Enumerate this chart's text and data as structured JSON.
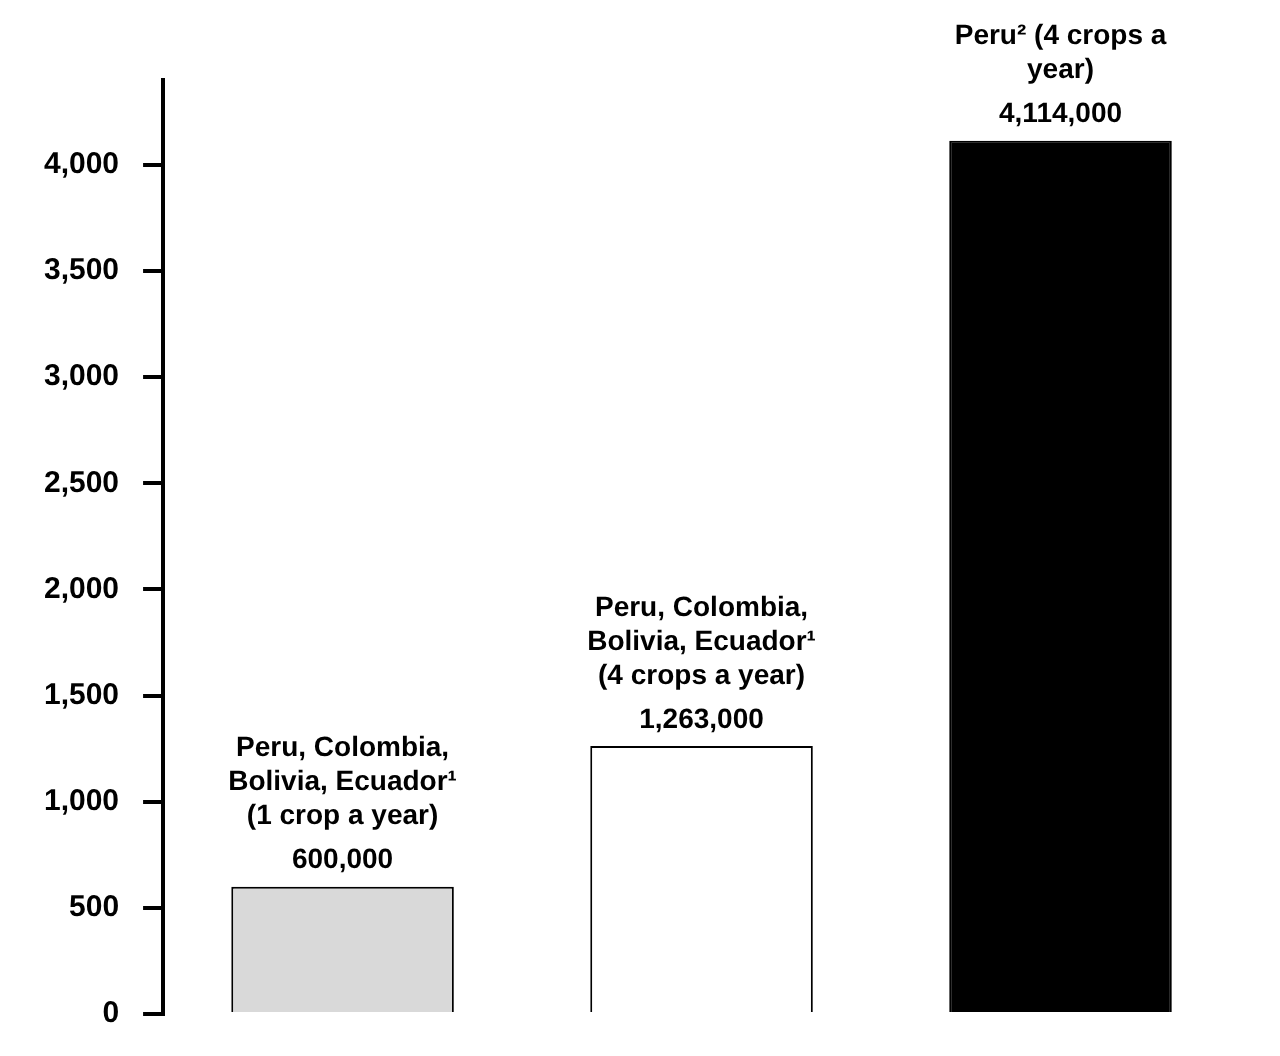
{
  "chart_data": {
    "type": "bar",
    "categories": [
      "Peru, Colombia, Bolivia, Ecuador¹ (1 crop a year)",
      "Peru, Colombia, Bolivia, Ecuador¹ (4 crops a year)",
      "Peru² (4 crops a year)"
    ],
    "values": [
      600,
      1263,
      4114
    ],
    "annotations": [
      {
        "text": "600,000",
        "x": "Peru, Colombia, Bolivia, Ecuador¹ (1 crop a year)",
        "y": 600
      },
      {
        "text": "1,263,000",
        "x": "Peru, Colombia, Bolivia, Ecuador¹ (4 crops a year)",
        "y": 1263
      },
      {
        "text": "4,114,000",
        "x": "Peru² (4 crops a year)",
        "y": 4114
      }
    ],
    "colors": [
      "#d9d9d9",
      "#ffffff",
      "#000000"
    ],
    "ylim": [
      0,
      4400
    ],
    "yticks": [
      {
        "value": 0,
        "label": "0"
      },
      {
        "value": 500,
        "label": "500"
      },
      {
        "value": 1000,
        "label": "1,000"
      },
      {
        "value": 1500,
        "label": "1,500"
      },
      {
        "value": 2000,
        "label": "2,000"
      },
      {
        "value": 2500,
        "label": "2,500"
      },
      {
        "value": 3000,
        "label": "3,000"
      },
      {
        "value": 3500,
        "label": "3,500"
      },
      {
        "value": 4000,
        "label": "4,000"
      }
    ],
    "grid": false,
    "legend": false
  }
}
